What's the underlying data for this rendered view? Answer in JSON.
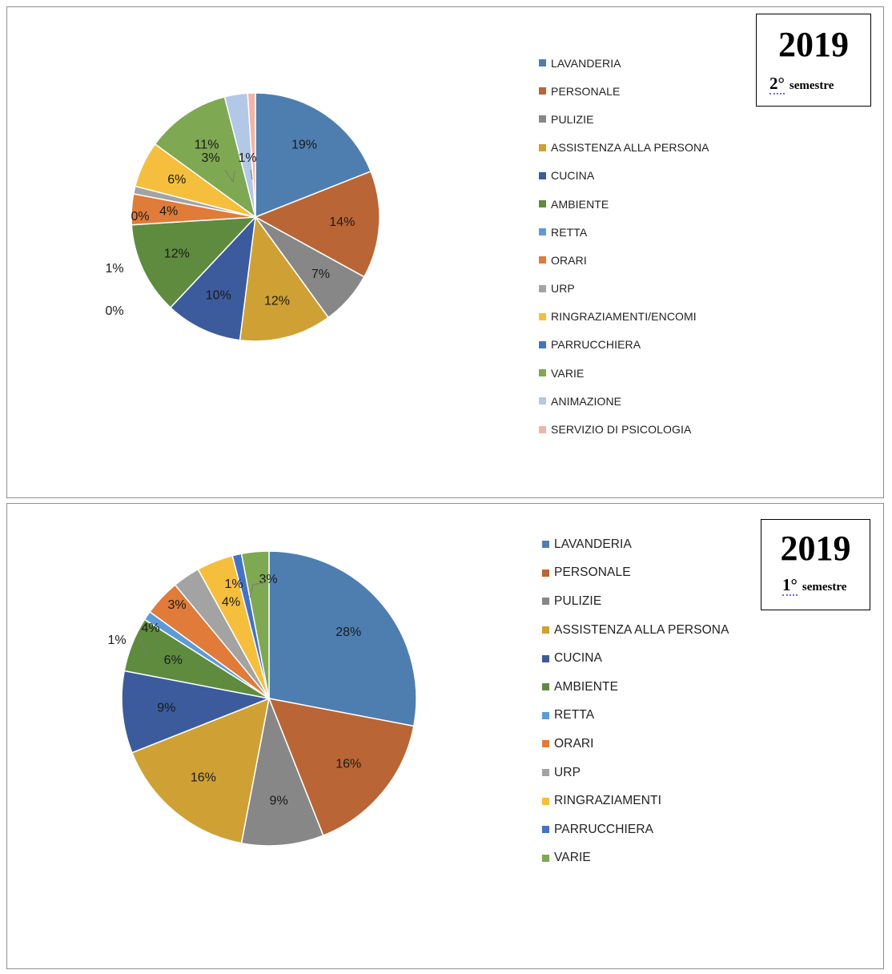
{
  "chart_data": [
    {
      "type": "pie",
      "period": {
        "year": "2019",
        "semester_num": "2°",
        "semester_word": "semestre"
      },
      "slices": [
        {
          "label": "LAVANDERIA",
          "value": 19,
          "display": "19%",
          "color": "#4e7eb0"
        },
        {
          "label": "PERSONALE",
          "value": 14,
          "display": "14%",
          "color": "#b96536"
        },
        {
          "label": "PULIZIE",
          "value": 7,
          "display": "7%",
          "color": "#878787"
        },
        {
          "label": "ASSISTENZA ALLA PERSONA",
          "value": 12,
          "display": "12%",
          "color": "#cfa034"
        },
        {
          "label": "CUCINA",
          "value": 10,
          "display": "10%",
          "color": "#3b5b9d"
        },
        {
          "label": "AMBIENTE",
          "value": 12,
          "display": "12%",
          "color": "#5f8b3e"
        },
        {
          "label": "RETTA",
          "value": 0,
          "display": "0%",
          "color": "#5d9bd6"
        },
        {
          "label": "ORARI",
          "value": 4,
          "display": "4%",
          "color": "#e07b3a"
        },
        {
          "label": "URP",
          "value": 1,
          "display": "1%",
          "color": "#a3a3a3"
        },
        {
          "label": "RINGRAZIAMENTI/ENCOMI",
          "value": 6,
          "display": "6%",
          "color": "#f5be3c"
        },
        {
          "label": "PARRUCCHIERA",
          "value": 0,
          "display": "0%",
          "color": "#4472c4"
        },
        {
          "label": "VARIE",
          "value": 11,
          "display": "11%",
          "color": "#7ea852"
        },
        {
          "label": "ANIMAZIONE",
          "value": 3,
          "display": "3%",
          "color": "#b3c7e6"
        },
        {
          "label": "SERVIZIO DI PSICOLOGIA",
          "value": 1,
          "display": "1%",
          "color": "#f0b5a6"
        }
      ]
    },
    {
      "type": "pie",
      "period": {
        "year": "2019",
        "semester_num": "1°",
        "semester_word": "semestre"
      },
      "slices": [
        {
          "label": "LAVANDERIA",
          "value": 28,
          "display": "28%",
          "color": "#4e7eb0"
        },
        {
          "label": "PERSONALE",
          "value": 16,
          "display": "16%",
          "color": "#b96536"
        },
        {
          "label": "PULIZIE",
          "value": 9,
          "display": "9%",
          "color": "#878787"
        },
        {
          "label": "ASSISTENZA ALLA PERSONA",
          "value": 16,
          "display": "16%",
          "color": "#cfa034"
        },
        {
          "label": "CUCINA",
          "value": 9,
          "display": "9%",
          "color": "#3b5b9d"
        },
        {
          "label": "AMBIENTE",
          "value": 6,
          "display": "6%",
          "color": "#5f8b3e"
        },
        {
          "label": "RETTA",
          "value": 1,
          "display": "1%",
          "color": "#5d9bd6"
        },
        {
          "label": "ORARI",
          "value": 4,
          "display": "4%",
          "color": "#e07b3a"
        },
        {
          "label": "URP",
          "value": 3,
          "display": "3%",
          "color": "#a3a3a3"
        },
        {
          "label": "RINGRAZIAMENTI",
          "value": 4,
          "display": "4%",
          "color": "#f5be3c"
        },
        {
          "label": "PARRUCCHIERA",
          "value": 1,
          "display": "1%",
          "color": "#4472c4"
        },
        {
          "label": "VARIE",
          "value": 3,
          "display": "3%",
          "color": "#7ea852"
        }
      ]
    }
  ]
}
